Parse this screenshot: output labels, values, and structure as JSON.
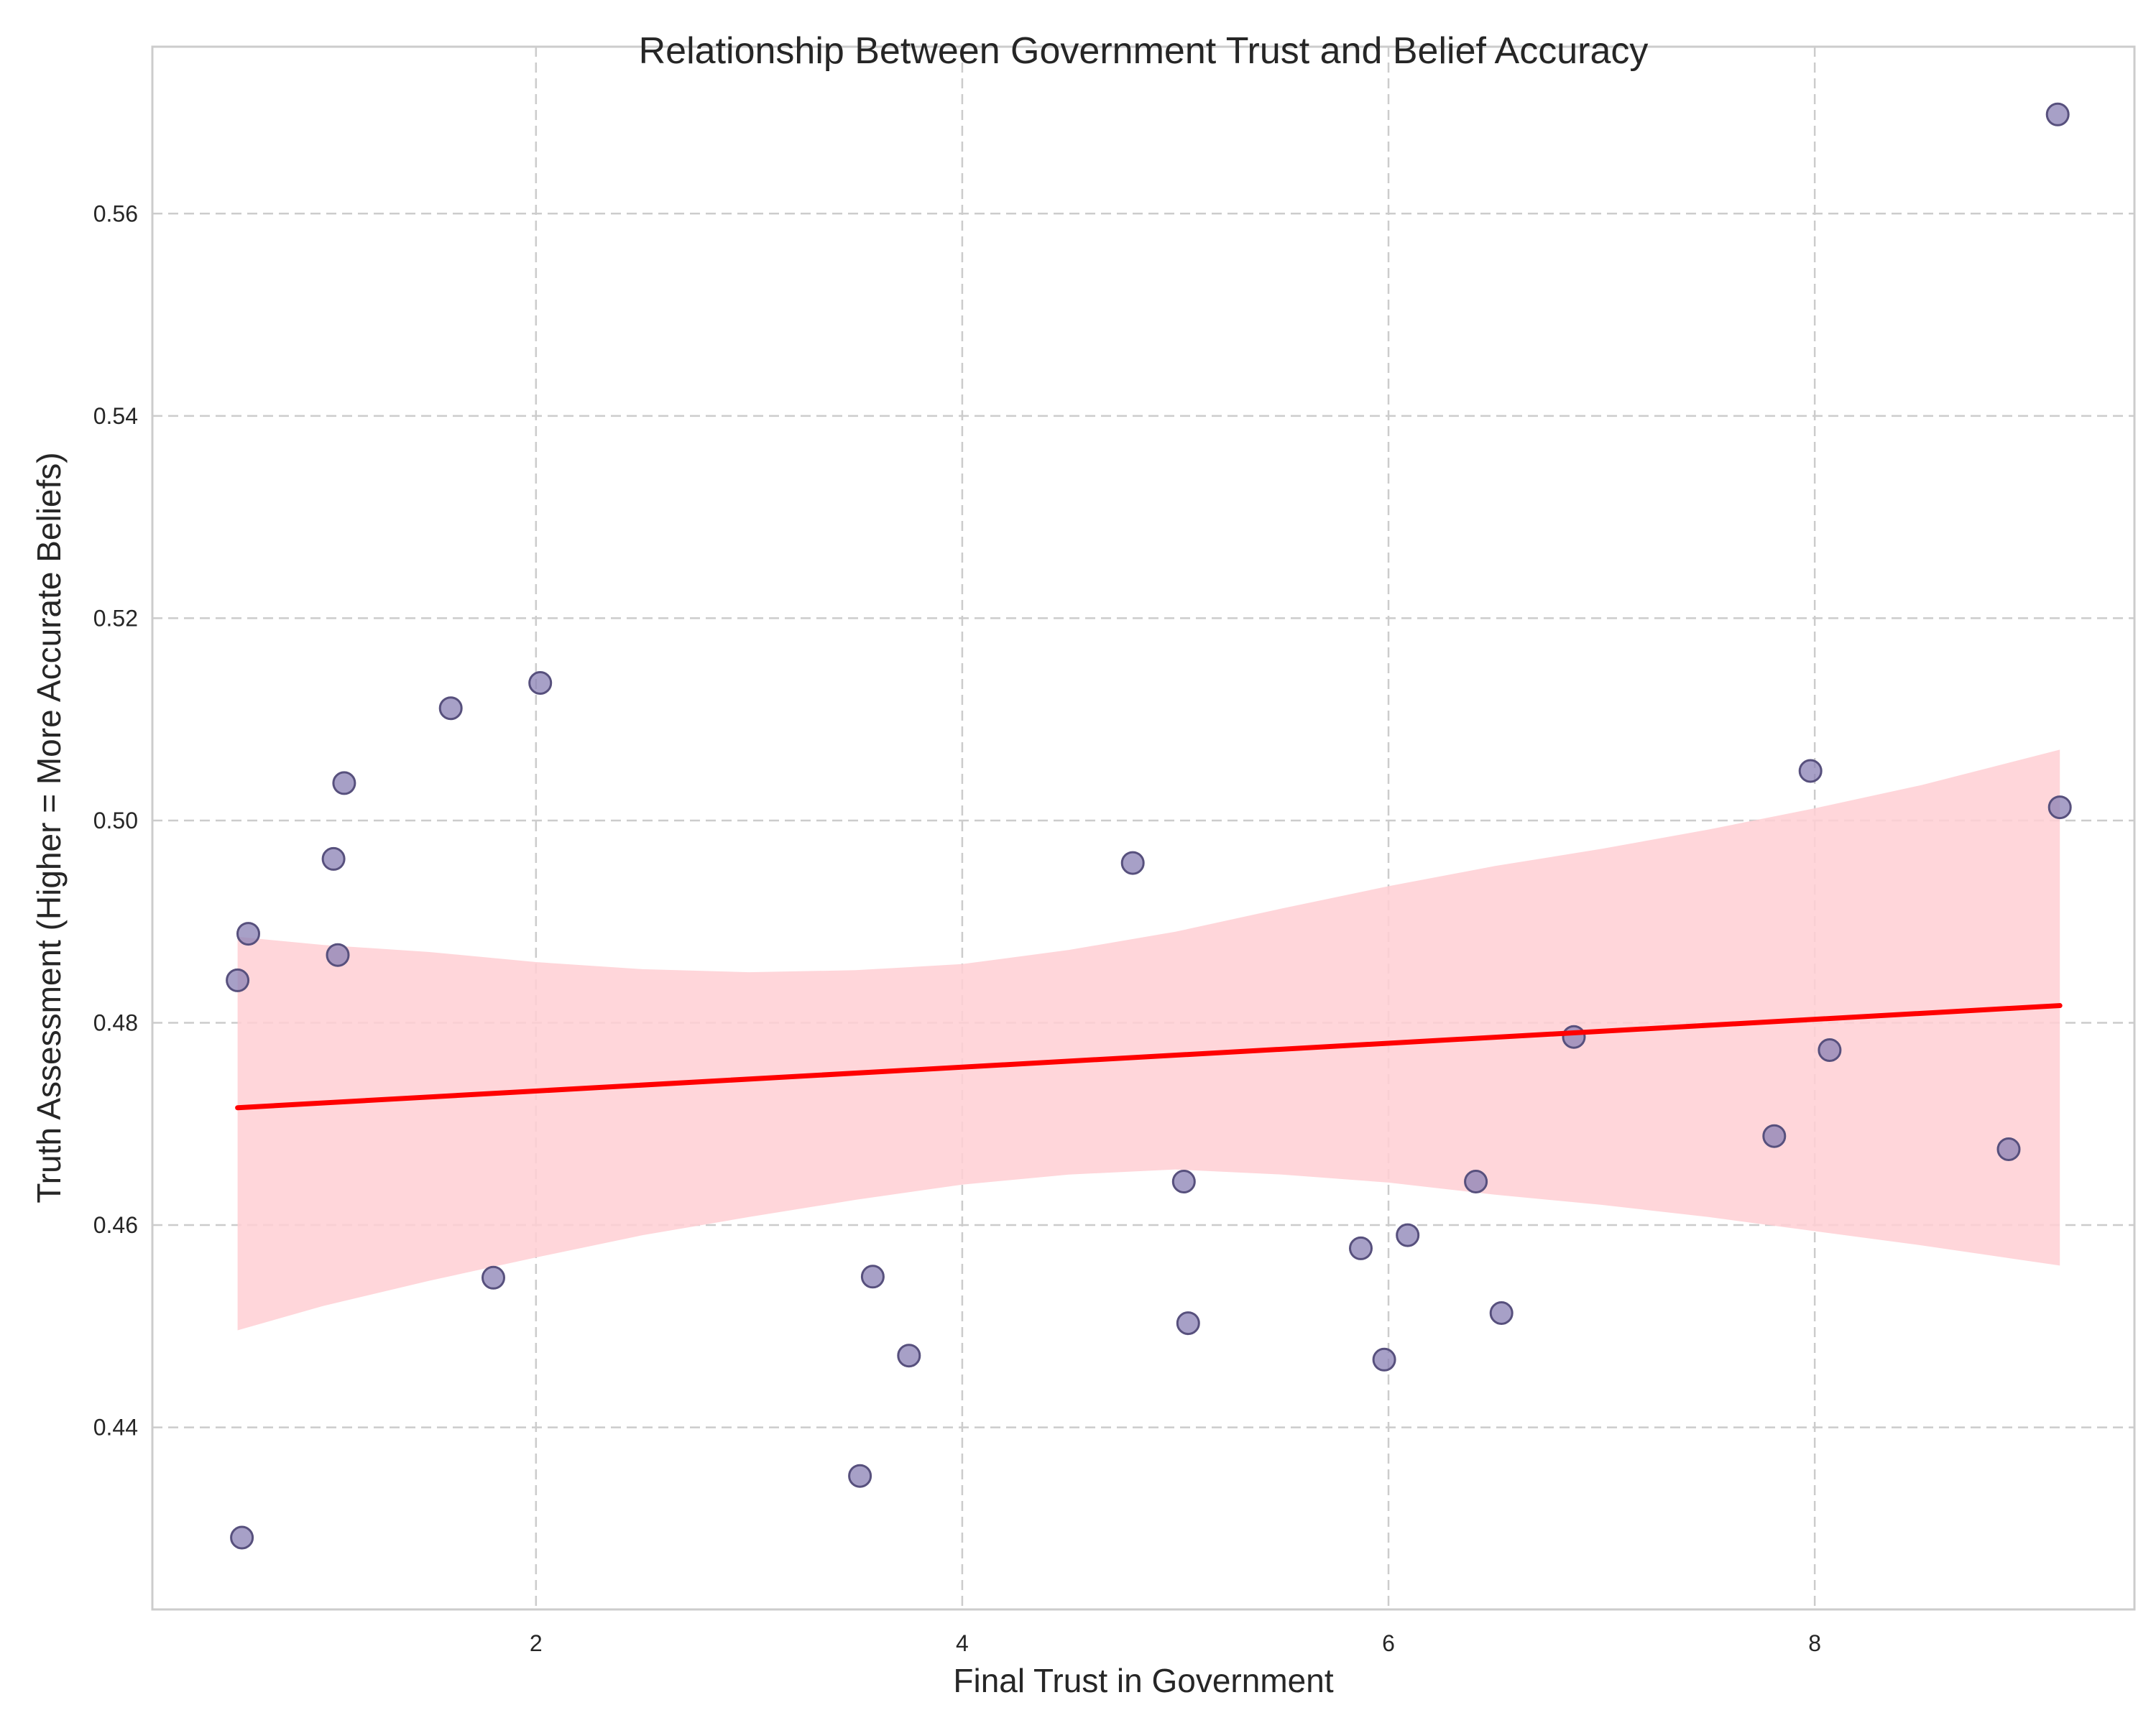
{
  "chart_data": {
    "type": "scatter",
    "title": "Relationship Between Government Trust and Belief Accuracy",
    "xlabel": "Final Trust in Government",
    "ylabel": "Truth Assessment (Higher = More Accurate Beliefs)",
    "xlim": [
      0.2,
      9.5
    ],
    "ylim": [
      0.422,
      0.5765
    ],
    "x_ticks": [
      2,
      4,
      6,
      8
    ],
    "y_ticks": [
      0.44,
      0.46,
      0.48,
      0.5,
      0.52,
      0.54,
      0.56
    ],
    "x_tick_labels": [
      "2",
      "4",
      "6",
      "8"
    ],
    "y_tick_labels": [
      "0.44",
      "0.46",
      "0.48",
      "0.50",
      "0.52",
      "0.54",
      "0.56"
    ],
    "grid": true,
    "legend": "none",
    "colors": {
      "points": "#8a80b4",
      "point_edge": "#57507d",
      "regression_line": "#ff0000",
      "confidence_band": "#ffcfd3",
      "grid": "#cccccc",
      "axes_edge": "#cccccc"
    },
    "points": [
      {
        "x": 0.6,
        "y": 0.4842
      },
      {
        "x": 0.62,
        "y": 0.4291
      },
      {
        "x": 0.65,
        "y": 0.4888
      },
      {
        "x": 1.05,
        "y": 0.4962
      },
      {
        "x": 1.07,
        "y": 0.4867
      },
      {
        "x": 1.1,
        "y": 0.5037
      },
      {
        "x": 1.6,
        "y": 0.5111
      },
      {
        "x": 1.8,
        "y": 0.4548
      },
      {
        "x": 2.02,
        "y": 0.5136
      },
      {
        "x": 3.52,
        "y": 0.4352
      },
      {
        "x": 3.58,
        "y": 0.4549
      },
      {
        "x": 3.75,
        "y": 0.4471
      },
      {
        "x": 4.8,
        "y": 0.4958
      },
      {
        "x": 5.04,
        "y": 0.4643
      },
      {
        "x": 5.06,
        "y": 0.4503
      },
      {
        "x": 5.87,
        "y": 0.4577
      },
      {
        "x": 5.98,
        "y": 0.4467
      },
      {
        "x": 6.09,
        "y": 0.459
      },
      {
        "x": 6.41,
        "y": 0.4643
      },
      {
        "x": 6.53,
        "y": 0.4513
      },
      {
        "x": 6.87,
        "y": 0.4786
      },
      {
        "x": 7.81,
        "y": 0.4688
      },
      {
        "x": 7.98,
        "y": 0.5049
      },
      {
        "x": 8.07,
        "y": 0.4773
      },
      {
        "x": 8.91,
        "y": 0.4675
      },
      {
        "x": 9.14,
        "y": 0.5698
      },
      {
        "x": 9.15,
        "y": 0.5013
      }
    ],
    "regression": {
      "x_start": 0.6,
      "y_start": 0.4716,
      "x_end": 9.15,
      "y_end": 0.4817
    },
    "confidence_band": {
      "x": [
        0.6,
        1.0,
        1.5,
        2.0,
        2.5,
        3.0,
        3.5,
        4.0,
        4.5,
        5.0,
        5.5,
        6.0,
        6.5,
        7.0,
        7.5,
        8.0,
        8.5,
        9.15
      ],
      "upper": [
        0.4885,
        0.4877,
        0.487,
        0.486,
        0.4853,
        0.485,
        0.4852,
        0.4858,
        0.4872,
        0.489,
        0.4913,
        0.4935,
        0.4955,
        0.4972,
        0.4991,
        0.5012,
        0.5035,
        0.507
      ],
      "lower": [
        0.4496,
        0.452,
        0.4545,
        0.4568,
        0.459,
        0.4608,
        0.4625,
        0.464,
        0.465,
        0.4655,
        0.465,
        0.4642,
        0.463,
        0.462,
        0.4608,
        0.4594,
        0.458,
        0.456
      ]
    }
  }
}
